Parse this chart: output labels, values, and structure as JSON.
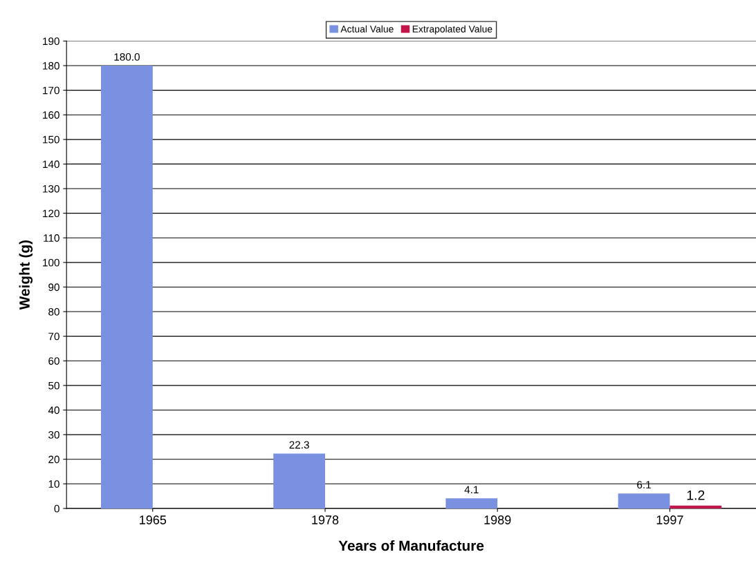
{
  "chart_data": {
    "type": "bar",
    "xlabel": "Years of Manufacture",
    "ylabel": "Weight (g)",
    "categories": [
      "1965",
      "1978",
      "1989",
      "1997"
    ],
    "series": [
      {
        "name": "Actual Value",
        "color": "#7a90e0",
        "values": [
          180.0,
          22.3,
          4.1,
          6.1
        ],
        "value_labels": [
          "180.0",
          "22.3",
          "4.1",
          "6.1"
        ]
      },
      {
        "name": "Extrapolated Value",
        "color": "#c2164a",
        "values": [
          null,
          null,
          null,
          1.2
        ],
        "value_labels": [
          null,
          null,
          null,
          "1.2"
        ]
      }
    ],
    "ylim": [
      0,
      190
    ],
    "yticks": [
      0,
      10,
      20,
      30,
      40,
      50,
      60,
      70,
      80,
      90,
      100,
      110,
      120,
      130,
      140,
      150,
      160,
      170,
      180,
      190
    ],
    "grid": "y",
    "legend": "top"
  }
}
